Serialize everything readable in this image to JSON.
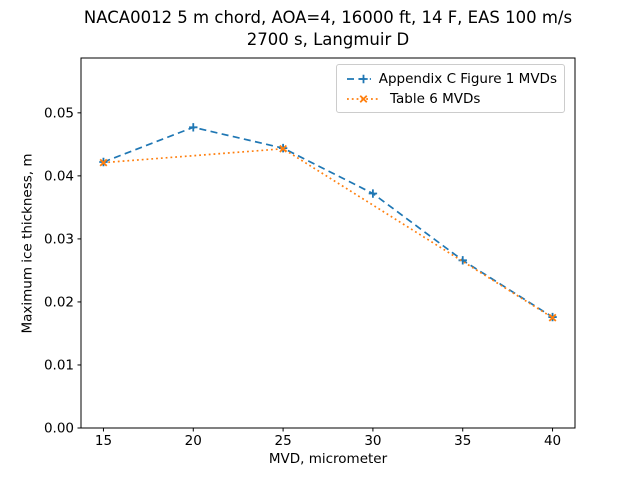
{
  "figure": {
    "background_color": "#ffffff",
    "spine_color": "#000000",
    "tick_color": "#000000",
    "legend_border_color": "#cccccc"
  },
  "chart_data": {
    "type": "line",
    "title": "NACA0012 5 m chord, AOA=4, 16000 ft, 14 F, EAS 100 m/s",
    "subtitle": "2700 s, Langmuir D",
    "xlabel": "MVD, micrometer",
    "ylabel": "Maximum ice thickness, m",
    "xlim": [
      13.75,
      41.25
    ],
    "ylim": [
      0,
      0.0587
    ],
    "x_ticks": [
      15,
      20,
      25,
      30,
      35,
      40
    ],
    "y_ticks": [
      0.0,
      0.01,
      0.02,
      0.03,
      0.04,
      0.05
    ],
    "y_tick_decimals": 2,
    "grid": false,
    "legend_position": "upper right",
    "series": [
      {
        "name": "Appendix C Figure 1 MVDs",
        "color": "#1f77b4",
        "line_style": "dashed",
        "marker": "plus",
        "x": [
          15,
          20,
          25,
          30,
          35,
          40
        ],
        "y": [
          0.0422,
          0.0477,
          0.0444,
          0.0372,
          0.0266,
          0.0176
        ]
      },
      {
        "name": "Table 6 MVDs",
        "color": "#ff7f0e",
        "line_style": "dotted",
        "marker": "x",
        "x": [
          15,
          25,
          40
        ],
        "y": [
          0.0421,
          0.0443,
          0.0175
        ]
      }
    ]
  }
}
